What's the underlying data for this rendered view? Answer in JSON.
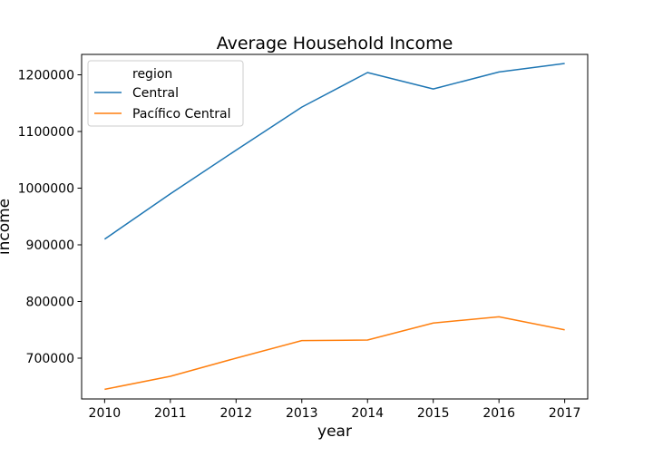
{
  "chart_data": {
    "type": "line",
    "title": "Average Household Income",
    "xlabel": "year",
    "ylabel": "income",
    "x": [
      2010,
      2011,
      2012,
      2013,
      2014,
      2015,
      2016,
      2017
    ],
    "xticks": [
      "2010",
      "2011",
      "2012",
      "2013",
      "2014",
      "2015",
      "2016",
      "2017"
    ],
    "yticks": [
      700000,
      800000,
      900000,
      1000000,
      1100000,
      1200000
    ],
    "ytick_labels": [
      "700000",
      "800000",
      "900000",
      "1000000",
      "1100000",
      "1200000"
    ],
    "xlim": [
      2009.65,
      2017.35
    ],
    "ylim": [
      628000,
      1236000
    ],
    "grid": false,
    "legend": {
      "title": "region",
      "placement": "top-left"
    },
    "series": [
      {
        "name": "Central",
        "color": "#1f77b4",
        "values": [
          910000,
          990000,
          1067000,
          1143000,
          1204000,
          1175000,
          1205000,
          1220000
        ]
      },
      {
        "name": "Pacífico Central",
        "color": "#ff7f0e",
        "values": [
          645000,
          668000,
          700000,
          731000,
          732000,
          762000,
          773000,
          750000
        ]
      }
    ]
  }
}
